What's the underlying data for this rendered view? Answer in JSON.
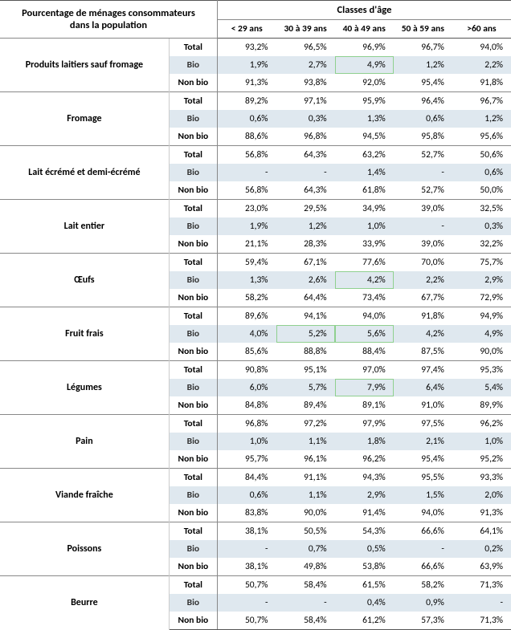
{
  "header": {
    "left_line1": "Pourcentage de ménages consommateurs",
    "left_line2": "dans la population",
    "classes_title": "Classes d'âge",
    "cols": [
      "< 29 ans",
      "30 à 39 ans",
      "40 à 49 ans",
      "50 à 59 ans",
      ">60 ans"
    ]
  },
  "type_labels": {
    "total": "Total",
    "bio": "Bio",
    "nonbio": "Non bio"
  },
  "categories": [
    {
      "name": "Produits laitiers sauf fromage",
      "total": [
        "93,2%",
        "96,5%",
        "96,9%",
        "96,7%",
        "94,0%"
      ],
      "bio": [
        "1,9%",
        "2,7%",
        "4,9%",
        "1,2%",
        "2,2%"
      ],
      "nonbio": [
        "91,3%",
        "93,8%",
        "92,0%",
        "95,4%",
        "91,8%"
      ],
      "bio_hl": [
        false,
        false,
        true,
        false,
        false
      ]
    },
    {
      "name": "Fromage",
      "total": [
        "89,2%",
        "97,1%",
        "95,9%",
        "96,4%",
        "96,7%"
      ],
      "bio": [
        "0,6%",
        "0,3%",
        "1,3%",
        "0,6%",
        "1,2%"
      ],
      "nonbio": [
        "88,6%",
        "96,8%",
        "94,5%",
        "95,8%",
        "95,6%"
      ],
      "bio_hl": [
        false,
        false,
        false,
        false,
        false
      ]
    },
    {
      "name": "Lait écrémé et demi-écrémé",
      "total": [
        "56,8%",
        "64,3%",
        "63,2%",
        "52,7%",
        "50,6%"
      ],
      "bio": [
        "-",
        "-",
        "1,4%",
        "-",
        "0,6%"
      ],
      "nonbio": [
        "56,8%",
        "64,3%",
        "61,8%",
        "52,7%",
        "50,0%"
      ],
      "bio_hl": [
        false,
        false,
        false,
        false,
        false
      ]
    },
    {
      "name": "Lait entier",
      "total": [
        "23,0%",
        "29,5%",
        "34,9%",
        "39,0%",
        "32,5%"
      ],
      "bio": [
        "1,9%",
        "1,2%",
        "1,0%",
        "-",
        "0,3%"
      ],
      "nonbio": [
        "21,1%",
        "28,3%",
        "33,9%",
        "39,0%",
        "32,2%"
      ],
      "bio_hl": [
        false,
        false,
        false,
        false,
        false
      ]
    },
    {
      "name": "Œufs",
      "total": [
        "59,4%",
        "67,1%",
        "77,6%",
        "70,0%",
        "75,7%"
      ],
      "bio": [
        "1,3%",
        "2,6%",
        "4,2%",
        "2,2%",
        "2,9%"
      ],
      "nonbio": [
        "58,2%",
        "64,4%",
        "73,4%",
        "67,7%",
        "72,9%"
      ],
      "bio_hl": [
        false,
        false,
        true,
        false,
        false
      ]
    },
    {
      "name": "Fruit frais",
      "total": [
        "89,6%",
        "94,1%",
        "94,0%",
        "91,8%",
        "94,9%"
      ],
      "bio": [
        "4,0%",
        "5,2%",
        "5,6%",
        "4,2%",
        "4,9%"
      ],
      "nonbio": [
        "85,6%",
        "88,8%",
        "88,4%",
        "87,5%",
        "90,0%"
      ],
      "bio_hl": [
        false,
        true,
        true,
        false,
        false
      ]
    },
    {
      "name": "Légumes",
      "total": [
        "90,8%",
        "95,1%",
        "97,0%",
        "97,4%",
        "95,3%"
      ],
      "bio": [
        "6,0%",
        "5,7%",
        "7,9%",
        "6,4%",
        "5,4%"
      ],
      "nonbio": [
        "84,8%",
        "89,4%",
        "89,1%",
        "91,0%",
        "89,9%"
      ],
      "bio_hl": [
        false,
        false,
        true,
        false,
        false
      ]
    },
    {
      "name": "Pain",
      "total": [
        "96,8%",
        "97,2%",
        "97,9%",
        "97,5%",
        "96,2%"
      ],
      "bio": [
        "1,0%",
        "1,1%",
        "1,8%",
        "2,1%",
        "1,0%"
      ],
      "nonbio": [
        "95,7%",
        "96,1%",
        "96,2%",
        "95,4%",
        "95,2%"
      ],
      "bio_hl": [
        false,
        false,
        false,
        false,
        false
      ]
    },
    {
      "name": "Viande fraîche",
      "total": [
        "84,4%",
        "91,1%",
        "94,3%",
        "95,5%",
        "93,3%"
      ],
      "bio": [
        "0,6%",
        "1,1%",
        "2,9%",
        "1,5%",
        "2,0%"
      ],
      "nonbio": [
        "83,8%",
        "90,0%",
        "91,4%",
        "94,0%",
        "91,3%"
      ],
      "bio_hl": [
        false,
        false,
        false,
        false,
        false
      ]
    },
    {
      "name": "Poissons",
      "total": [
        "38,1%",
        "50,5%",
        "54,3%",
        "66,6%",
        "64,1%"
      ],
      "bio": [
        "-",
        "0,7%",
        "0,5%",
        "-",
        "0,2%"
      ],
      "nonbio": [
        "38,1%",
        "49,8%",
        "53,8%",
        "66,6%",
        "63,9%"
      ],
      "bio_hl": [
        false,
        false,
        false,
        false,
        false
      ]
    },
    {
      "name": "Beurre",
      "total": [
        "50,7%",
        "58,4%",
        "61,5%",
        "58,2%",
        "71,3%"
      ],
      "bio": [
        "-",
        "-",
        "0,4%",
        "0,9%",
        "-"
      ],
      "nonbio": [
        "50,7%",
        "58,4%",
        "61,2%",
        "57,3%",
        "71,3%"
      ],
      "bio_hl": [
        false,
        false,
        false,
        false,
        false
      ]
    }
  ],
  "styling": {
    "bio_bg": "#dfe8ef",
    "border_color": "#888888",
    "highlight_border": "#8fd08f"
  }
}
